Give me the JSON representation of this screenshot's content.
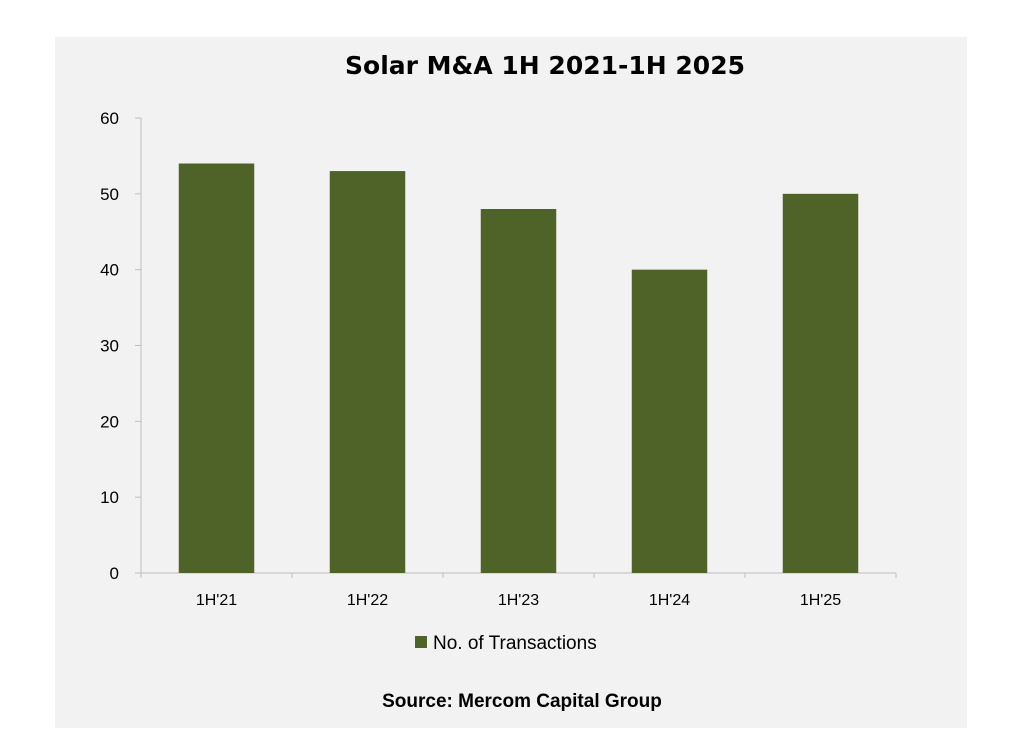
{
  "chart_data": {
    "type": "bar",
    "title": "Solar M&A 1H 2021-1H 2025",
    "categories": [
      "1H'21",
      "1H'22",
      "1H'23",
      "1H'24",
      "1H'25"
    ],
    "series": [
      {
        "name": "No. of Transactions",
        "values": [
          54,
          53,
          48,
          40,
          50
        ],
        "color": "#4f6228"
      }
    ],
    "ylim": [
      0,
      60
    ],
    "yticks": [
      0,
      10,
      20,
      30,
      40,
      50,
      60
    ],
    "grid": false,
    "legend": "bottom-center",
    "source": "Source: Mercom Capital Group"
  }
}
